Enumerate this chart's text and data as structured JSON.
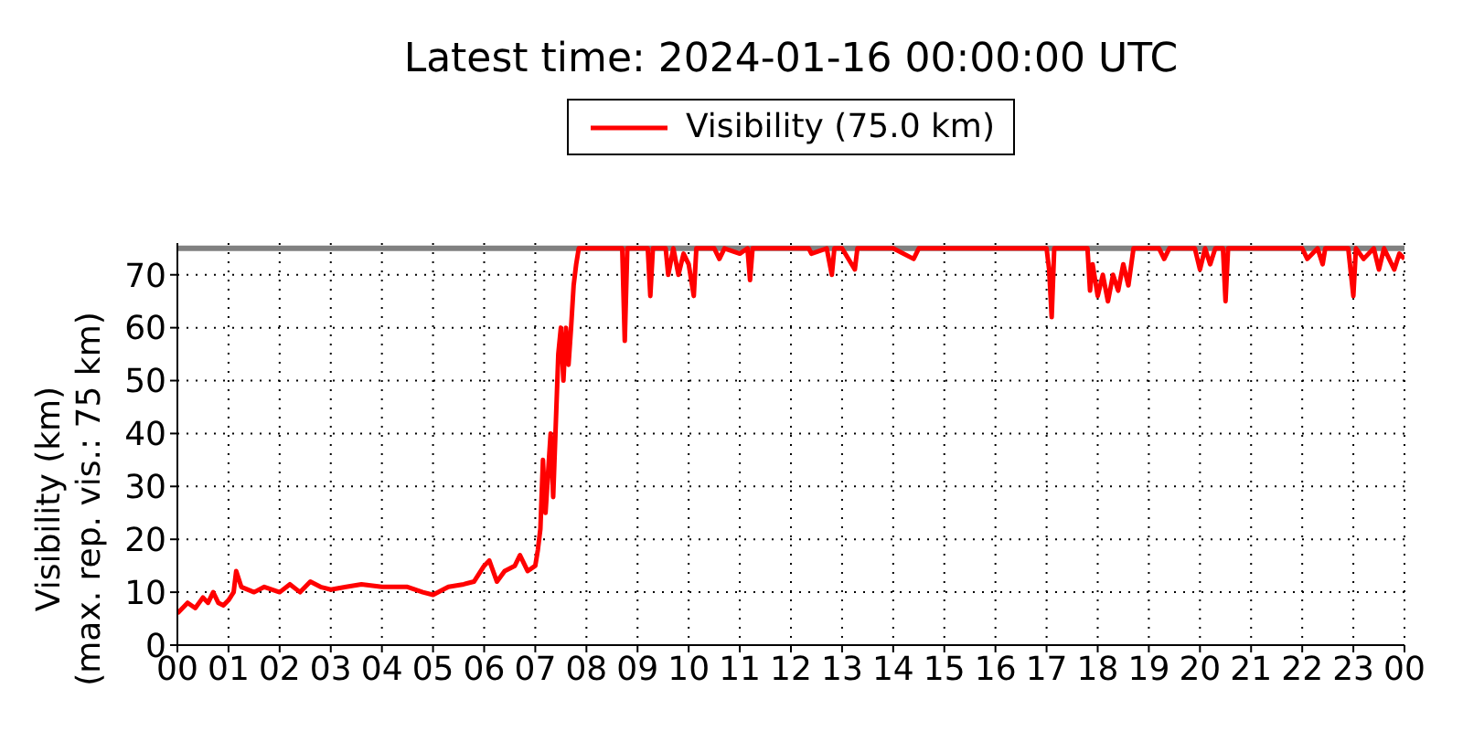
{
  "chart_data": {
    "type": "line",
    "title": "Latest time: 2024-01-16 00:00:00 UTC",
    "ylabel": "Visibility (km)\n(max. rep. vis.: 75 km)",
    "x": [
      0,
      0.2,
      0.35,
      0.5,
      0.6,
      0.7,
      0.8,
      0.9,
      1.0,
      1.1,
      1.15,
      1.25,
      1.5,
      1.7,
      2.0,
      2.2,
      2.4,
      2.6,
      2.8,
      3.0,
      3.3,
      3.6,
      4.0,
      4.5,
      4.8,
      5.0,
      5.3,
      5.6,
      5.8,
      6.0,
      6.1,
      6.25,
      6.4,
      6.6,
      6.7,
      6.85,
      7.0,
      7.05,
      7.1,
      7.15,
      7.2,
      7.3,
      7.35,
      7.45,
      7.5,
      7.55,
      7.6,
      7.65,
      7.7,
      7.75,
      7.8,
      7.85,
      8.0,
      8.7,
      8.75,
      8.8,
      9.2,
      9.25,
      9.3,
      9.55,
      9.6,
      9.7,
      9.8,
      9.9,
      10.0,
      10.1,
      10.15,
      10.5,
      10.6,
      10.7,
      11.0,
      11.15,
      11.2,
      11.25,
      12.35,
      12.4,
      12.7,
      12.8,
      12.85,
      13.0,
      13.25,
      13.3,
      14.0,
      14.4,
      14.5,
      17.0,
      17.05,
      17.1,
      17.15,
      17.8,
      17.85,
      17.9,
      18.0,
      18.1,
      18.2,
      18.3,
      18.4,
      18.5,
      18.6,
      18.7,
      19.2,
      19.3,
      19.4,
      19.9,
      20.0,
      20.1,
      20.2,
      20.3,
      20.45,
      20.5,
      20.55,
      22.0,
      22.1,
      22.3,
      22.4,
      22.45,
      22.9,
      23.0,
      23.05,
      23.2,
      23.4,
      23.5,
      23.6,
      23.8,
      23.9,
      24.0
    ],
    "series": [
      {
        "name": "Visibility (75.0 km)",
        "color": "#ff0000",
        "values": [
          6,
          8,
          7,
          9,
          8,
          10,
          8,
          7.5,
          8.5,
          10,
          14,
          11,
          10,
          11,
          10,
          11.5,
          10,
          12,
          11,
          10.5,
          11,
          11.5,
          11,
          11,
          10,
          9.5,
          11,
          11.5,
          12,
          15,
          16,
          12,
          14,
          15,
          17,
          14,
          15,
          18,
          22,
          35,
          25,
          40,
          28,
          55,
          60,
          50,
          60,
          53,
          60,
          68,
          72,
          75,
          75,
          75,
          57.5,
          75,
          75,
          66,
          75,
          75,
          70,
          75,
          70,
          74,
          72,
          66,
          75,
          75,
          73,
          75,
          74,
          75,
          69,
          75,
          75,
          74,
          75,
          70,
          75,
          75,
          71,
          75,
          75,
          73,
          75,
          75,
          71,
          62,
          75,
          75,
          67,
          72,
          66,
          70,
          65,
          70,
          67,
          72,
          68,
          75,
          75,
          73,
          75,
          75,
          71,
          75,
          72,
          75,
          75,
          65,
          75,
          75,
          73,
          75,
          72,
          75,
          75,
          66,
          75,
          73,
          75,
          71,
          75,
          71,
          74,
          73
        ]
      }
    ],
    "xlim": [
      0,
      24
    ],
    "xticks": [
      {
        "value": 0,
        "label": "00"
      },
      {
        "value": 1,
        "label": "01"
      },
      {
        "value": 2,
        "label": "02"
      },
      {
        "value": 3,
        "label": "03"
      },
      {
        "value": 4,
        "label": "04"
      },
      {
        "value": 5,
        "label": "05"
      },
      {
        "value": 6,
        "label": "06"
      },
      {
        "value": 7,
        "label": "07"
      },
      {
        "value": 8,
        "label": "08"
      },
      {
        "value": 9,
        "label": "09"
      },
      {
        "value": 10,
        "label": "10"
      },
      {
        "value": 11,
        "label": "11"
      },
      {
        "value": 12,
        "label": "12"
      },
      {
        "value": 13,
        "label": "13"
      },
      {
        "value": 14,
        "label": "14"
      },
      {
        "value": 15,
        "label": "15"
      },
      {
        "value": 16,
        "label": "16"
      },
      {
        "value": 17,
        "label": "17"
      },
      {
        "value": 18,
        "label": "18"
      },
      {
        "value": 19,
        "label": "19"
      },
      {
        "value": 20,
        "label": "20"
      },
      {
        "value": 21,
        "label": "21"
      },
      {
        "value": 22,
        "label": "22"
      },
      {
        "value": 23,
        "label": "23"
      },
      {
        "value": 24,
        "label": "00"
      }
    ],
    "ylim": [
      0,
      76
    ],
    "yticks": [
      0,
      10,
      20,
      30,
      40,
      50,
      60,
      70
    ],
    "ref_lines": [
      {
        "axis": "y",
        "value": 75,
        "color": "#808080"
      }
    ],
    "grid": true,
    "legend": "top",
    "marker": "none",
    "line_style": "solid"
  }
}
